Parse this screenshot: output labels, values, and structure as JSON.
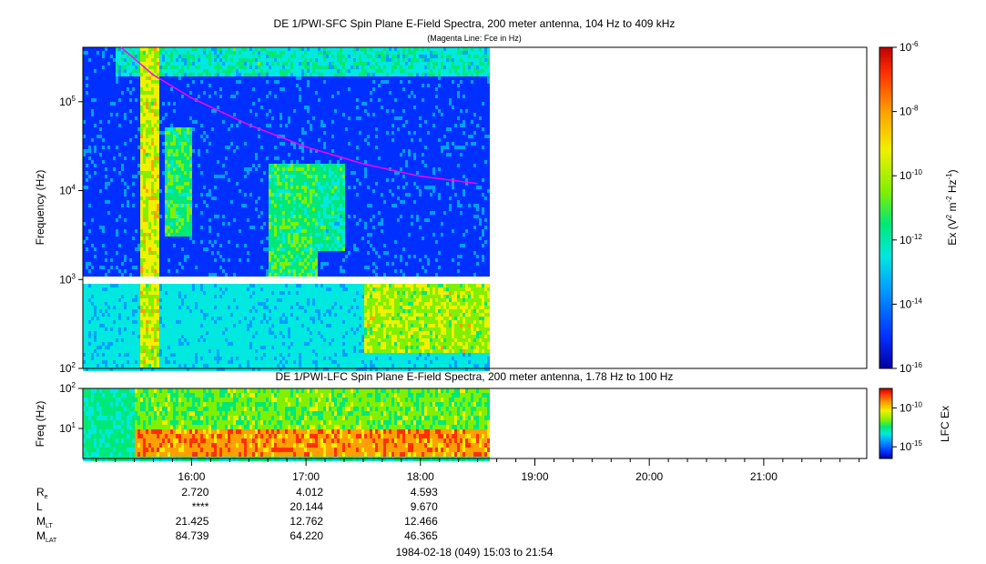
{
  "top_panel": {
    "title": "DE 1/PWI-SFC  Spin Plane E-Field Spectra, 200 meter antenna, 104 Hz to 409 kHz",
    "subtitle": "(Magenta Line: Fce in Hz)",
    "ylabel": "Frequency (Hz)",
    "y_ticks": [
      {
        "base": "10",
        "exp": "5",
        "value": 100000
      },
      {
        "base": "10",
        "exp": "4",
        "value": 10000
      },
      {
        "base": "10",
        "exp": "3",
        "value": 1000
      },
      {
        "base": "10",
        "exp": "2",
        "value": 100
      }
    ]
  },
  "top_colorbar": {
    "label_parts": [
      "Ex (V",
      "2",
      " m",
      "-2",
      " Hz",
      "-1",
      ")"
    ],
    "ticks": [
      {
        "base": "10",
        "exp": "-6",
        "value": 1e-06
      },
      {
        "base": "10",
        "exp": "-8",
        "value": 1e-08
      },
      {
        "base": "10",
        "exp": "-10",
        "value": 1e-10
      },
      {
        "base": "10",
        "exp": "-12",
        "value": 1e-12
      },
      {
        "base": "10",
        "exp": "-14",
        "value": 1e-14
      },
      {
        "base": "10",
        "exp": "-16",
        "value": 1e-16
      }
    ]
  },
  "bottom_panel": {
    "title": "DE 1/PWI-LFC  Spin Plane E-Field Spectra, 200 meter antenna, 1.78 Hz to 100 Hz",
    "ylabel": "Freq (Hz)",
    "y_ticks": [
      {
        "base": "10",
        "exp": "2",
        "value": 100
      },
      {
        "base": "10",
        "exp": "1",
        "value": 10
      }
    ]
  },
  "bottom_colorbar": {
    "label": "LFC Ex",
    "ticks": [
      {
        "base": "10",
        "exp": "-10",
        "value": 1e-10
      },
      {
        "base": "10",
        "exp": "-15",
        "value": 1e-15
      }
    ]
  },
  "x_axis": {
    "ticks": [
      "16:00",
      "17:00",
      "18:00",
      "19:00",
      "20:00",
      "21:00"
    ],
    "footer": "1984-02-18 (049) 15:03 to 21:54"
  },
  "ephemeris": {
    "rows": [
      {
        "label": "R",
        "sub": "e",
        "values": [
          "2.720",
          "4.012",
          "4.593"
        ]
      },
      {
        "label": "L",
        "sub": "",
        "values": [
          "****",
          "20.144",
          "9.670"
        ]
      },
      {
        "label": "M",
        "sub": "LT",
        "values": [
          "21.425",
          "12.762",
          "12.466"
        ]
      },
      {
        "label": "M",
        "sub": "LAT",
        "values": [
          "84.739",
          "64.220",
          "46.365"
        ]
      }
    ]
  },
  "colors": {
    "magenta_line": "#ff00ff",
    "scale": [
      "#0000a0",
      "#0030ff",
      "#00a0ff",
      "#00e8e0",
      "#00e878",
      "#80f000",
      "#f0f000",
      "#ffa000",
      "#ff3000",
      "#c00000"
    ]
  },
  "chart_data": {
    "type": "heatmap",
    "time_range": [
      "15:03",
      "21:54"
    ],
    "data_end": "18:36",
    "sfc": {
      "yscale": "log",
      "ylim": [
        100,
        409000
      ],
      "gap_hz": [
        900,
        1050
      ],
      "fce_line": {
        "x": [
          "15:23",
          "15:40",
          "16:00",
          "16:30",
          "17:00",
          "17:30",
          "18:00",
          "18:30"
        ],
        "y": [
          409000,
          200000,
          110000,
          55000,
          31000,
          20000,
          14500,
          12000
        ]
      },
      "bands": [
        {
          "t": [
            "15:33",
            "15:42"
          ],
          "f": [
            100,
            409000
          ],
          "level": 0.72
        },
        {
          "t": [
            "15:45",
            "16:00"
          ],
          "f": [
            3000,
            50000
          ],
          "level": 0.55
        },
        {
          "t": [
            "16:40",
            "17:05"
          ],
          "f": [
            1000,
            20000
          ],
          "level": 0.55
        },
        {
          "t": [
            "17:05",
            "17:20"
          ],
          "f": [
            2000,
            20000
          ],
          "level": 0.5
        },
        {
          "t": [
            "15:20",
            "18:36"
          ],
          "f": [
            200000,
            409000
          ],
          "level": 0.45
        },
        {
          "t": [
            "17:30",
            "18:36"
          ],
          "f": [
            150,
            900
          ],
          "level": 0.68
        }
      ]
    },
    "lfc": {
      "yscale": "log",
      "ylim": [
        1.78,
        100
      ],
      "bands": [
        {
          "t": [
            "15:03",
            "15:30"
          ],
          "f": [
            3,
            100
          ],
          "level": 0.45
        },
        {
          "t": [
            "15:30",
            "18:36"
          ],
          "f": [
            1.78,
            10
          ],
          "level": 0.88
        },
        {
          "t": [
            "15:30",
            "18:36"
          ],
          "f": [
            10,
            100
          ],
          "level": 0.62
        }
      ]
    }
  }
}
